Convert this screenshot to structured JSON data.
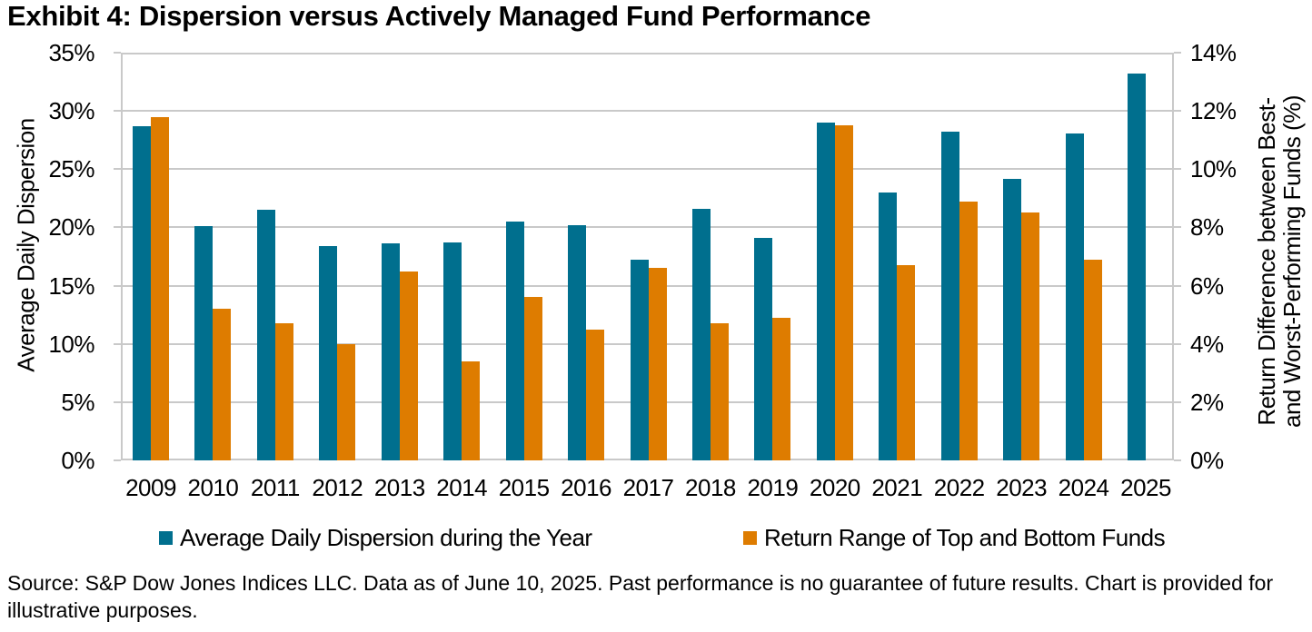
{
  "title": "Exhibit 4: Dispersion versus Actively Managed Fund Performance",
  "source_note": "Source: S&P Dow Jones Indices LLC. Data as of June 10, 2025. Past performance is no guarantee of future results. Chart is provided for illustrative purposes.",
  "chart_data": {
    "type": "bar",
    "categories": [
      "2009",
      "2010",
      "2011",
      "2012",
      "2013",
      "2014",
      "2015",
      "2016",
      "2017",
      "2018",
      "2019",
      "2020",
      "2021",
      "2022",
      "2023",
      "2024",
      "2025"
    ],
    "series": [
      {
        "name": "Average Daily Dispersion during the Year",
        "axis": "left",
        "color": "#006F8E",
        "values": [
          28.7,
          20.1,
          21.5,
          18.4,
          18.6,
          18.7,
          20.5,
          20.2,
          17.2,
          21.6,
          19.1,
          29.0,
          23.0,
          28.2,
          24.2,
          28.1,
          33.2
        ]
      },
      {
        "name": "Return Range of Top and Bottom Funds",
        "axis": "right",
        "color": "#DE7C00",
        "values": [
          11.8,
          5.2,
          4.7,
          4.0,
          6.5,
          3.4,
          5.6,
          4.5,
          6.6,
          4.7,
          4.9,
          11.5,
          6.7,
          8.9,
          8.5,
          6.9,
          null
        ]
      }
    ],
    "left_axis": {
      "title": "Average Daily Dispersion",
      "min": 0,
      "max": 35,
      "step": 5,
      "format": "percent"
    },
    "right_axis": {
      "title_line1": "Return Difference between Best-",
      "title_line2": "and Worst-Performing Funds (%)",
      "min": 0,
      "max": 14,
      "step": 2,
      "format": "percent"
    },
    "grid": true,
    "legend_position": "bottom"
  },
  "colors": {
    "grid": "#C9C9C9",
    "text": "#000000",
    "background": "#FFFFFF"
  }
}
